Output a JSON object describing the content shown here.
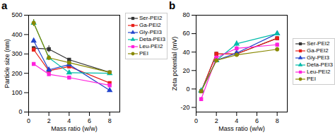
{
  "chart_data": [
    {
      "type": "line",
      "title": "a",
      "xlabel": "Mass ratio (w/w)",
      "ylabel": "Particle size (nm)",
      "x": [
        0.5,
        2,
        4,
        8
      ],
      "xlim": [
        0,
        9
      ],
      "xticks": [
        0,
        2,
        4,
        6,
        8
      ],
      "ylim": [
        0,
        500
      ],
      "yticks": [
        0,
        100,
        200,
        300,
        400,
        500
      ],
      "legend": "upper right",
      "series": [
        {
          "name": "Ser-PEI2",
          "color": "#333333",
          "marker": "square",
          "values": [
            330,
            325,
            270,
            205
          ],
          "yerr": [
            8,
            18,
            6,
            5
          ]
        },
        {
          "name": "Ga-PEI2",
          "color": "#e8201a",
          "marker": "square",
          "values": [
            322,
            213,
            235,
            150
          ],
          "yerr": [
            8,
            6,
            6,
            5
          ]
        },
        {
          "name": "Gly-PEI3",
          "color": "#2244cc",
          "marker": "triangle",
          "values": [
            368,
            218,
            245,
            112
          ],
          "yerr": [
            8,
            6,
            6,
            5
          ]
        },
        {
          "name": "Deta-PEI3",
          "color": "#00bbaa",
          "marker": "triangle",
          "values": [
            460,
            280,
            203,
            200
          ],
          "yerr": [
            18,
            12,
            6,
            5
          ]
        },
        {
          "name": "Leu-PEI2",
          "color": "#ff22dd",
          "marker": "square",
          "values": [
            248,
            195,
            178,
            138
          ],
          "yerr": [
            8,
            6,
            4,
            4
          ]
        },
        {
          "name": "PEI",
          "color": "#888800",
          "marker": "circle",
          "values": [
            460,
            280,
            255,
            205
          ],
          "yerr": [
            18,
            10,
            6,
            5
          ]
        }
      ]
    },
    {
      "type": "line",
      "title": "b",
      "xlabel": "Mass ratio (w/w)",
      "ylabel": "Zeta potential (mV)",
      "x": [
        0.5,
        2,
        4,
        8
      ],
      "xlim": [
        0,
        9
      ],
      "xticks": [
        0,
        2,
        4,
        6,
        8
      ],
      "ylim": [
        -25,
        80
      ],
      "yticks": [
        -20,
        0,
        20,
        40,
        60,
        80
      ],
      "legend": "center right",
      "series": [
        {
          "name": "Ser-PEI2",
          "color": "#333333",
          "marker": "square",
          "values": [
            -2.5,
            38,
            38,
            55
          ],
          "yerr": [
            1,
            2,
            2,
            2
          ]
        },
        {
          "name": "Ga-PEI2",
          "color": "#e8201a",
          "marker": "square",
          "values": [
            -2.5,
            38,
            38,
            55
          ],
          "yerr": [
            1,
            2,
            2,
            2
          ]
        },
        {
          "name": "Gly-PEI3",
          "color": "#2244cc",
          "marker": "triangle",
          "values": [
            -2,
            31,
            39,
            60
          ],
          "yerr": [
            1,
            2,
            2,
            2
          ]
        },
        {
          "name": "Deta-PEI3",
          "color": "#00bbaa",
          "marker": "triangle",
          "values": [
            -2,
            31,
            49,
            60
          ],
          "yerr": [
            1,
            2,
            3,
            2
          ]
        },
        {
          "name": "Leu-PEI2",
          "color": "#ff22dd",
          "marker": "square",
          "values": [
            -11,
            34,
            44,
            48
          ],
          "yerr": [
            2,
            2,
            2,
            2
          ]
        },
        {
          "name": "PEI",
          "color": "#888800",
          "marker": "circle",
          "values": [
            -2.5,
            31,
            37,
            43
          ],
          "yerr": [
            1,
            2,
            2,
            2
          ]
        }
      ]
    }
  ]
}
